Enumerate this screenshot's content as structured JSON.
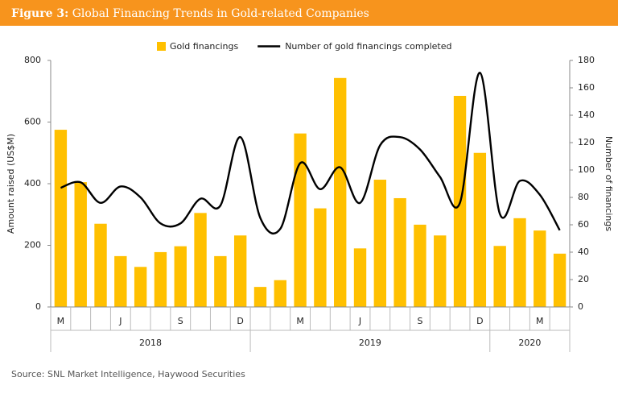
{
  "figure_label": "Figure 3:",
  "chart_data": {
    "type": "bar_line",
    "title": "Global Financing Trends in Gold-related Companies",
    "source": "Source: SNL Market Intelligence, Haywood Securities",
    "y_label": "Amount raised (US$M)",
    "y2_label": "Number of financings",
    "categories": [
      "M",
      null,
      null,
      "J",
      null,
      null,
      "S",
      null,
      null,
      "D",
      null,
      null,
      "M",
      null,
      null,
      "J",
      null,
      null,
      "S",
      null,
      null,
      "D",
      null,
      null,
      "M",
      null
    ],
    "year_groups": [
      {
        "label": "2018",
        "count": 10
      },
      {
        "label": "2019",
        "count": 12
      },
      {
        "label": "2020",
        "count": 4
      }
    ],
    "series": [
      {
        "name": "Gold financings",
        "type": "bar",
        "color": "#ffc000",
        "values": [
          575,
          405,
          270,
          165,
          130,
          178,
          197,
          305,
          165,
          232,
          65,
          87,
          563,
          320,
          743,
          190,
          413,
          353,
          267,
          232,
          685,
          500,
          198,
          288,
          248,
          173
        ]
      },
      {
        "name": "Number of gold financings completed",
        "type": "line",
        "axis": "y2",
        "color": "#000000",
        "values": [
          87,
          91,
          76,
          88,
          80,
          61,
          61,
          79,
          74,
          124,
          65,
          57,
          105,
          86,
          102,
          76,
          118,
          124,
          115,
          95,
          76,
          171,
          68,
          92,
          82,
          56
        ]
      }
    ],
    "ylim": [
      0,
      800
    ],
    "yticks": [
      0,
      200,
      400,
      600,
      800
    ],
    "y2lim": [
      0,
      180
    ],
    "y2ticks": [
      0,
      20,
      40,
      60,
      80,
      100,
      120,
      140,
      160,
      180
    ],
    "legend": "top"
  }
}
